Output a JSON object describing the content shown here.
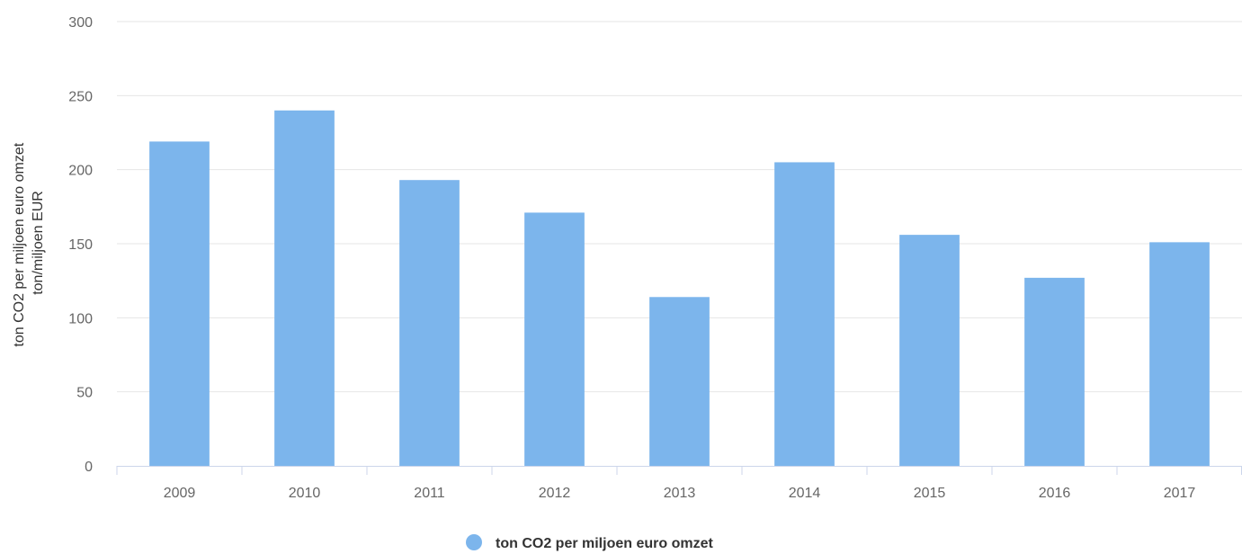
{
  "chart_data": {
    "type": "bar",
    "categories": [
      "2009",
      "2010",
      "2011",
      "2012",
      "2013",
      "2014",
      "2015",
      "2016",
      "2017"
    ],
    "series": [
      {
        "name": "ton CO2 per miljoen euro omzet",
        "values": [
          219,
          240,
          193,
          171,
          114,
          205,
          156,
          127,
          151
        ],
        "color": "#7cb5ec"
      }
    ],
    "ylabel_lines": [
      "ton CO2 per miljoen euro omzet",
      "ton/miljoen EUR"
    ],
    "ylim": [
      0,
      300
    ],
    "yticks": [
      "0",
      "50",
      "100",
      "150",
      "200",
      "250",
      "300"
    ],
    "grid": true,
    "legend": "bottom-center"
  }
}
